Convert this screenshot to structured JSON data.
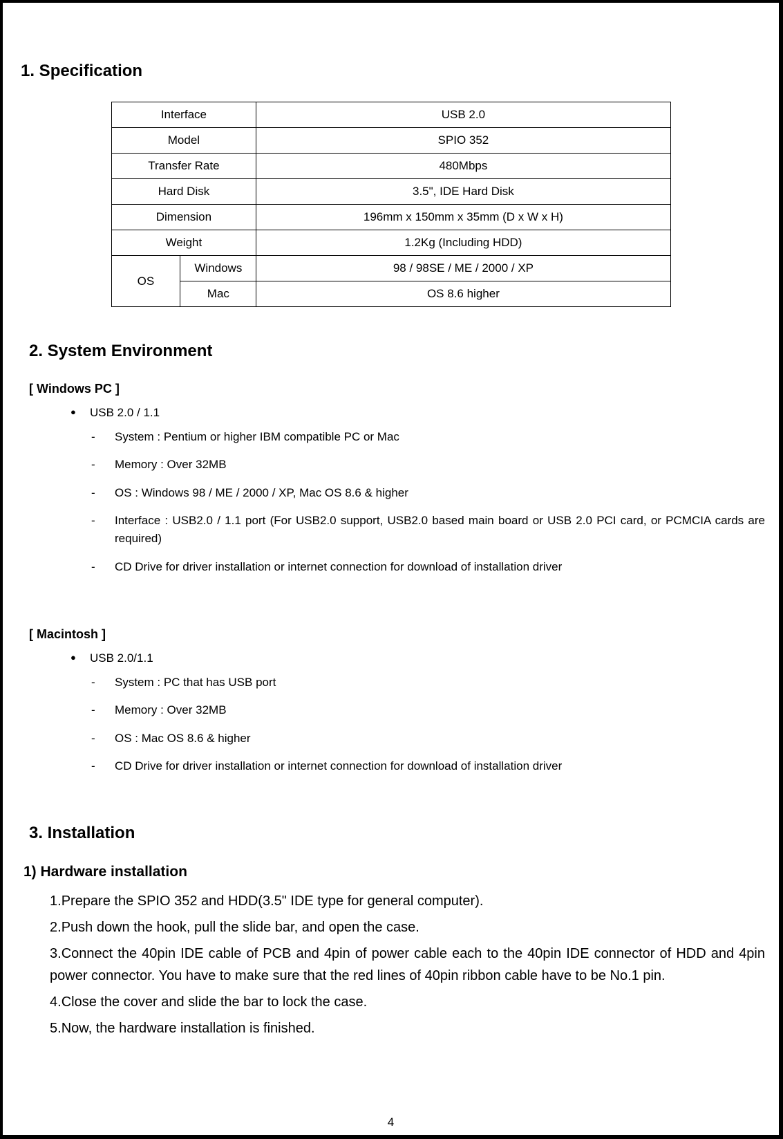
{
  "section1": {
    "title": "1. Specification",
    "table": {
      "rows": [
        {
          "label": "Interface",
          "value": "USB 2.0"
        },
        {
          "label": "Model",
          "value": "SPIO 352"
        },
        {
          "label": "Transfer Rate",
          "value": "480Mbps"
        },
        {
          "label": "Hard Disk",
          "value": "3.5\", IDE Hard Disk"
        },
        {
          "label": "Dimension",
          "value": "196mm x 150mm x 35mm (D x W x H)"
        },
        {
          "label": "Weight",
          "value": "1.2Kg (Including HDD)"
        }
      ],
      "os_label": "OS",
      "os_rows": [
        {
          "sub": "Windows",
          "value": "98 / 98SE / ME / 2000 / XP"
        },
        {
          "sub": "Mac",
          "value": "OS 8.6 higher"
        }
      ]
    }
  },
  "section2": {
    "title": "2. System Environment",
    "windows": {
      "heading": "[ Windows PC ]",
      "bullet": "USB 2.0 / 1.1",
      "items": [
        "System : Pentium or higher IBM compatible PC or Mac",
        "Memory : Over 32MB",
        "OS : Windows 98 / ME / 2000 / XP, Mac OS 8.6 & higher",
        "Interface : USB2.0 / 1.1 port (For USB2.0 support, USB2.0 based main board or USB 2.0 PCI card, or PCMCIA cards are required)",
        "CD Drive for driver installation or internet connection for download of installation driver"
      ]
    },
    "mac": {
      "heading": "[ Macintosh ]",
      "bullet": "USB 2.0/1.1",
      "items": [
        "System : PC that has USB port",
        "Memory : Over 32MB",
        "OS : Mac OS 8.6 & higher",
        "CD Drive for driver installation or internet connection for download of installation driver"
      ]
    }
  },
  "section3": {
    "title": "3. Installation",
    "sub": "1) Hardware installation",
    "steps": [
      "Prepare the SPIO 352 and HDD(3.5\" IDE type for general computer).",
      "Push down the hook, pull the slide bar, and open the case.",
      "Connect the 40pin IDE cable of PCB and 4pin of power cable each to the 40pin IDE connector of HDD and 4pin power connector. You have to make sure that the red lines of 40pin ribbon cable have to be No.1 pin.",
      "Close the cover and slide the bar to lock the case.",
      "Now, the hardware installation is finished."
    ]
  },
  "page_number": "4"
}
